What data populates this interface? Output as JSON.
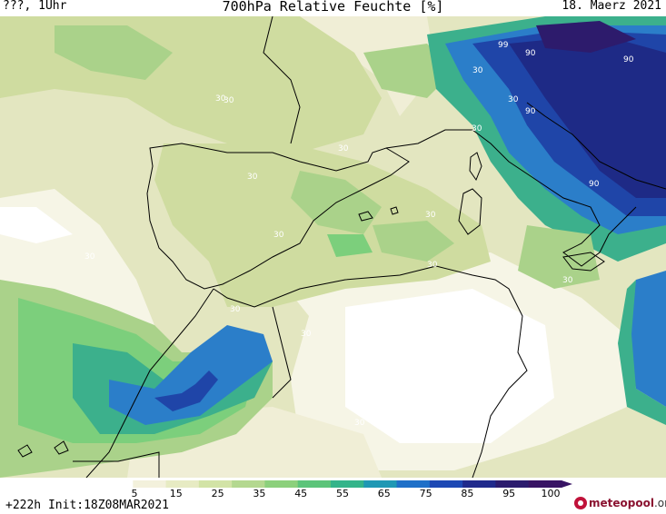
{
  "header": {
    "left_text": "???, 1Uhr",
    "title": "700hPa Relative Feuchte [%]",
    "date": "18. Maerz 2021"
  },
  "footer": {
    "run_info": "+222h  Init:18Z08MAR2021",
    "logo_brand": "meteopool",
    "logo_tld": ".org"
  },
  "colorbar": {
    "ticks": [
      "5",
      "15",
      "25",
      "35",
      "45",
      "55",
      "65",
      "75",
      "85",
      "95",
      "100"
    ],
    "colors": [
      "#ffffff",
      "#f3f1dc",
      "#e7ebc3",
      "#d2e3a6",
      "#b4d890",
      "#8cd07c",
      "#5cc47a",
      "#34b48a",
      "#1f98b4",
      "#1f70c8",
      "#1d48b4",
      "#202a8c",
      "#2c1c6e",
      "#381464"
    ]
  },
  "map": {
    "region": "Western Mediterranean / Iberia / North Africa",
    "colors": {
      "land_line": "#000000",
      "white": "#ffffff",
      "cream": "#f0eed6",
      "pale": "#e3e6c0",
      "olive": "#cfdca0",
      "green": "#aad28a",
      "mint": "#7ccf7c",
      "teal": "#3cb08c",
      "blue": "#2b7ec9",
      "darkblue": "#1f45a8",
      "navy": "#1e2a86",
      "purple": "#2d1b6c"
    },
    "contour_labels": [
      {
        "text": "30"
      },
      {
        "text": "30"
      },
      {
        "text": "30"
      },
      {
        "text": "30"
      },
      {
        "text": "30"
      },
      {
        "text": "30"
      },
      {
        "text": "30"
      },
      {
        "text": "30"
      },
      {
        "text": "30"
      },
      {
        "text": "30"
      },
      {
        "text": "30"
      },
      {
        "text": "30"
      },
      {
        "text": "30"
      },
      {
        "text": "30"
      },
      {
        "text": "30"
      },
      {
        "text": "90"
      },
      {
        "text": "90"
      },
      {
        "text": "90"
      },
      {
        "text": "90"
      },
      {
        "text": "99"
      }
    ]
  }
}
